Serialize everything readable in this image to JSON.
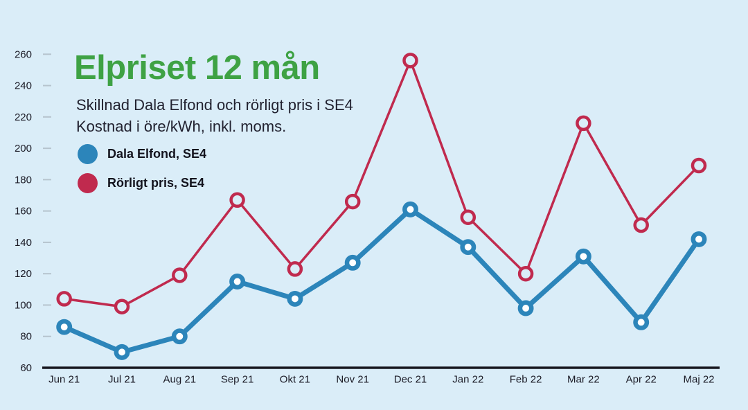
{
  "page": {
    "background_color": "#daedf8"
  },
  "header": {
    "title": "Elpriset 12 mån",
    "title_color": "#3ea244",
    "subtitle_line1": "Skillnad Dala Elfond och rörligt pris i SE4",
    "subtitle_line2": "Kostnad i öre/kWh, inkl. moms."
  },
  "legend": [
    {
      "label": "Dala Elfond, SE4",
      "color": "#2c85ba"
    },
    {
      "label": "Rörligt pris, SE4",
      "color": "#c02a4e"
    }
  ],
  "chart_data": {
    "type": "line",
    "title": "Elpriset 12 mån",
    "subtitle": "Skillnad Dala Elfond och rörligt pris i SE4. Kostnad i öre/kWh, inkl. moms.",
    "categories": [
      "Jun 21",
      "Jul 21",
      "Aug 21",
      "Sep 21",
      "Okt 21",
      "Nov 21",
      "Dec 21",
      "Jan 22",
      "Feb 22",
      "Mar 22",
      "Apr 22",
      "Maj 22"
    ],
    "series": [
      {
        "name": "Dala Elfond, SE4",
        "color": "#2c85ba",
        "values": [
          86,
          70,
          80,
          115,
          104,
          127,
          161,
          137,
          98,
          131,
          89,
          142
        ],
        "line_width": 7,
        "marker_fill": "#ffffff",
        "marker_radius": 8.2,
        "marker_stroke_width": 6.5
      },
      {
        "name": "Rörligt pris, SE4",
        "color": "#c02a4e",
        "values": [
          104,
          99,
          119,
          167,
          123,
          166,
          256,
          156,
          120,
          216,
          151,
          189
        ],
        "line_width": 3.5,
        "marker_fill": "#daedf8",
        "marker_radius": 9,
        "marker_stroke_width": 4.5
      }
    ],
    "xlabel": "",
    "ylabel": "",
    "ylim": [
      60,
      260
    ],
    "yticks": [
      60,
      80,
      100,
      120,
      140,
      160,
      180,
      200,
      220,
      240,
      260
    ],
    "grid": false,
    "legend_position": "top-left",
    "axis_line_color": "#16161e",
    "tick_color": "#b6c4ce"
  }
}
